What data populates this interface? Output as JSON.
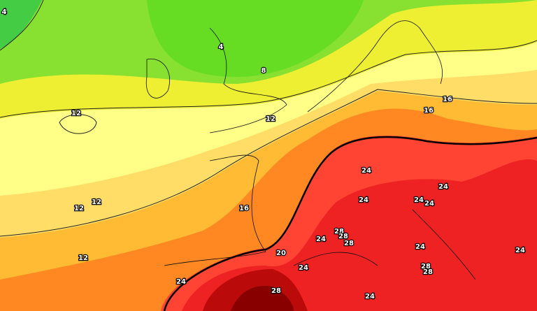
{
  "labels": [
    4,
    4,
    8,
    12,
    12,
    16,
    16,
    12,
    12,
    16,
    12,
    20,
    24,
    24,
    24,
    24,
    24,
    28,
    28,
    28,
    24,
    24,
    24,
    24,
    28,
    28,
    24,
    28,
    24
  ]
}
